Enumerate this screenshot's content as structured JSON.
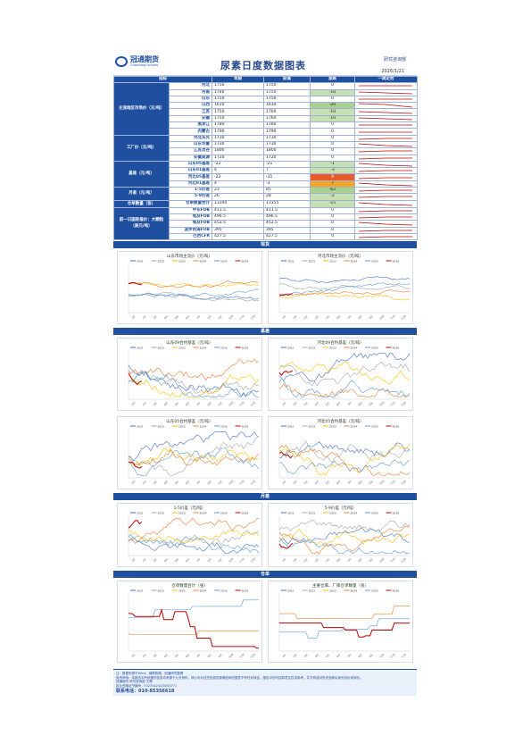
{
  "header": {
    "logo_cn": "冠通期货",
    "logo_en": "Guantong Futures",
    "title": "尿素日度数据图表",
    "dept": "研究咨询部",
    "date": "2026/1/21"
  },
  "table": {
    "headers": [
      "指标",
      "",
      "本期",
      "前值",
      "涨跌",
      "一周走势"
    ],
    "groups": [
      {
        "label": "主流地区市场价（元/吨）",
        "rows": [
          {
            "name": "河北",
            "cur": "1750",
            "prev": "1750",
            "chg": "0",
            "cls": ""
          },
          {
            "name": "河南",
            "cur": "1740",
            "prev": "1750",
            "chg": "-10",
            "cls": "lg"
          },
          {
            "name": "山东",
            "cur": "1750",
            "prev": "1750",
            "chg": "0",
            "cls": ""
          },
          {
            "name": "山西",
            "cur": "1610",
            "prev": "1630",
            "chg": "-20",
            "cls": "g"
          },
          {
            "name": "江苏",
            "cur": "1750",
            "prev": "1760",
            "chg": "-10",
            "cls": "lg"
          },
          {
            "name": "安徽",
            "cur": "1750",
            "prev": "1760",
            "chg": "-10",
            "cls": "lg"
          },
          {
            "name": "黑龙江",
            "cur": "1780",
            "prev": "1780",
            "chg": "0",
            "cls": ""
          },
          {
            "name": "内蒙古",
            "cur": "1790",
            "prev": "1790",
            "chg": "0",
            "cls": ""
          }
        ]
      },
      {
        "label": "工厂价（元/吨）",
        "rows": [
          {
            "name": "河北东光",
            "cur": "1730",
            "prev": "1730",
            "chg": "0",
            "cls": ""
          },
          {
            "name": "山东华鲁",
            "cur": "1730",
            "prev": "1730",
            "chg": "0",
            "cls": ""
          },
          {
            "name": "江苏灵谷",
            "cur": "1800",
            "prev": "1800",
            "chg": "0",
            "cls": ""
          },
          {
            "name": "安徽昊源",
            "cur": "1720",
            "prev": "1720",
            "chg": "0",
            "cls": ""
          }
        ]
      },
      {
        "label": "基差（元/吨）",
        "rows": [
          {
            "name": "山东05基差",
            "cur": "-22",
            "prev": "-21",
            "chg": "-1",
            "cls": "lg"
          },
          {
            "name": "山东01基差",
            "cur": "4",
            "prev": "7",
            "chg": "-3",
            "cls": "lg"
          },
          {
            "name": "河北05基差",
            "cur": "-22",
            "prev": "-31",
            "chg": "9",
            "cls": "r"
          },
          {
            "name": "河北01基差",
            "cur": "4",
            "prev": "-3",
            "chg": "7",
            "cls": "o"
          }
        ]
      },
      {
        "label": "月差（元/吨）",
        "rows": [
          {
            "name": "1-5价差",
            "cur": "23",
            "prev": "85",
            "chg": "-62",
            "cls": "g"
          },
          {
            "name": "5-9价差",
            "cur": "26",
            "prev": "28",
            "chg": "-2",
            "cls": "lg"
          }
        ]
      },
      {
        "label": "仓单数量（张）",
        "rows": [
          {
            "name": "仓单数量合计",
            "cur": "13340",
            "prev": "13355",
            "chg": "-15",
            "cls": "lg"
          }
        ]
      },
      {
        "label": "前一日国际报价：大颗粒（美元/吨）",
        "rows": [
          {
            "name": "中东FOB",
            "cur": "411.5",
            "prev": "411.5",
            "chg": "0",
            "cls": ""
          },
          {
            "name": "埃及FOB",
            "cur": "496.5",
            "prev": "496.5",
            "chg": "0",
            "cls": ""
          },
          {
            "name": "埃及FOB",
            "cur": "452.5",
            "prev": "452.5",
            "chg": "0",
            "cls": ""
          },
          {
            "name": "波罗的海FOB",
            "cur": "395",
            "prev": "395",
            "chg": "0",
            "cls": ""
          },
          {
            "name": "巴西CFR",
            "cur": "427.5",
            "prev": "427.5",
            "chg": "0",
            "cls": ""
          }
        ]
      }
    ]
  },
  "sections": [
    "现货",
    "基差",
    "月差",
    "仓单"
  ],
  "charts": {
    "spot": [
      {
        "title": "山东市场主流价（元/吨）"
      },
      {
        "title": "河北市场主流价（元/吨）"
      }
    ],
    "basis": [
      {
        "title": "山东09合约基差（元/吨）"
      },
      {
        "title": "河北09合约基差（元/吨）"
      },
      {
        "title": "山东05合约基差（元/吨）"
      },
      {
        "title": "河北05合约基差（元/吨）"
      }
    ],
    "spread": [
      {
        "title": "1-5价差（元/吨）"
      },
      {
        "title": "5-9价差（元/吨）"
      }
    ],
    "warrant": [
      {
        "title": "仓单数量合计（张）"
      },
      {
        "title": "主要仓库、厂库仓单数量（张）"
      }
    ],
    "legend_years": [
      "2021",
      "2022",
      "2023",
      "2024",
      "2025",
      "2026"
    ],
    "colors": [
      "#4472c4",
      "#a5a5a5",
      "#ffc000",
      "#ed7d31",
      "#5b9bd5",
      "#c00000"
    ]
  },
  "footer": {
    "source": "注：数据来源于Wind、钢联数据、冠通研究整理",
    "disclaimer": "免责声明：本报告中所依据的信息均来源于公开资料，我公司对这些信息的准确性和完整性不作任何保证。报告中的内容和意见仅供参考，并不构成对所述品种买卖的出价或询价。",
    "company": "冠通期货 研究咨询部 王静",
    "license": "执业资格证书编号：F0235424/Z0000771",
    "phone": "联系电话：010-85356618"
  }
}
